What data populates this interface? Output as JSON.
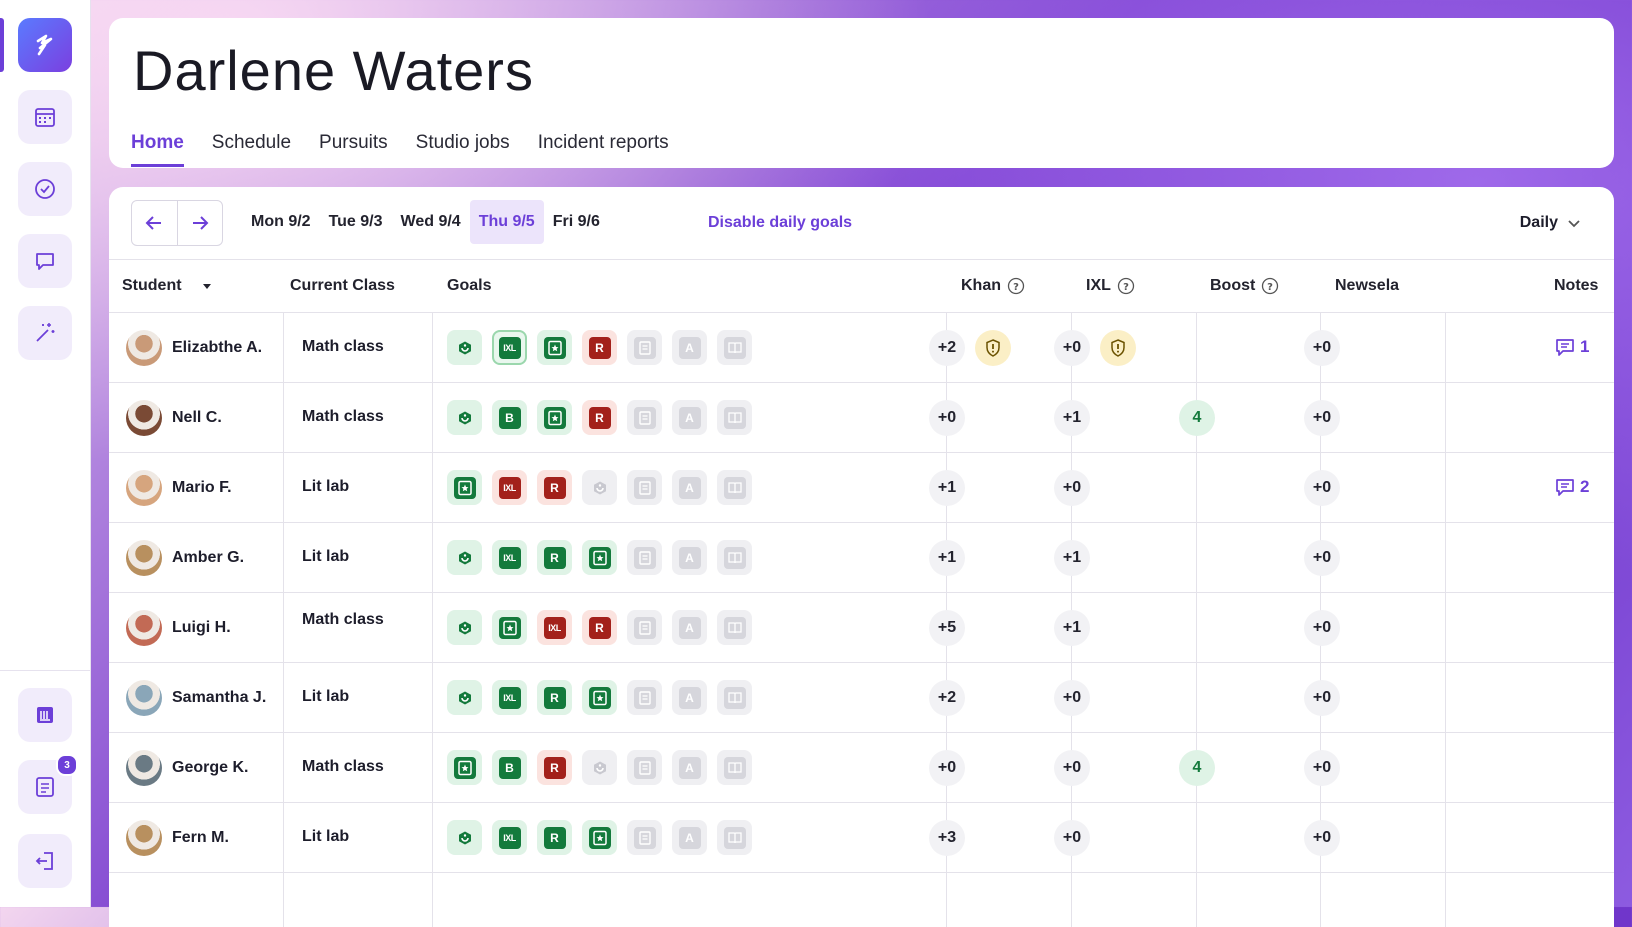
{
  "sidebar": {
    "items": [
      "logo-icon",
      "calendar-icon",
      "check-circle-icon",
      "chat-icon",
      "magic-wand-icon"
    ],
    "bottom_items": [
      "library-icon",
      "report-icon",
      "logout-icon"
    ],
    "report_badge": "3"
  },
  "header": {
    "title": "Darlene Waters",
    "tabs": [
      "Home",
      "Schedule",
      "Pursuits",
      "Studio jobs",
      "Incident reports"
    ],
    "active_tab": "Home"
  },
  "toolbar": {
    "days": [
      "Mon 9/2",
      "Tue 9/3",
      "Wed 9/4",
      "Thu 9/5",
      "Fri 9/6"
    ],
    "active_day": "Thu 9/5",
    "disable_goals_label": "Disable daily goals",
    "view_label": "Daily"
  },
  "table": {
    "headers": {
      "student": "Student",
      "current_class": "Current Class",
      "goals": "Goals",
      "khan": "Khan",
      "ixl": "IXL",
      "boost": "Boost",
      "newsela": "Newsela",
      "notes": "Notes"
    },
    "rows": [
      {
        "name": "Elizabthe A.",
        "class": "Math class",
        "khan": "+2",
        "khan_warn": true,
        "ixl": "+0",
        "ixl_warn": true,
        "boost": "",
        "newsela": "+0",
        "notes": "1",
        "avatar_color": "#c99a78",
        "goals": [
          [
            "green",
            "khan"
          ],
          [
            "green-outlined",
            "ixl"
          ],
          [
            "green",
            "star"
          ],
          [
            "red",
            "R"
          ],
          [
            "grey",
            "doc"
          ],
          [
            "grey",
            "A"
          ],
          [
            "grey",
            "book"
          ]
        ]
      },
      {
        "name": "Nell C.",
        "class": "Math class",
        "khan": "+0",
        "ixl": "+1",
        "boost": "4",
        "newsela": "+0",
        "notes": "",
        "avatar_color": "#7a4a35",
        "goals": [
          [
            "green",
            "khan"
          ],
          [
            "green",
            "B"
          ],
          [
            "green",
            "star"
          ],
          [
            "red",
            "R"
          ],
          [
            "grey",
            "doc"
          ],
          [
            "grey",
            "A"
          ],
          [
            "grey",
            "book"
          ]
        ]
      },
      {
        "name": "Mario F.",
        "class": "Lit lab",
        "khan": "+1",
        "ixl": "+0",
        "boost": "",
        "newsela": "+0",
        "notes": "2",
        "avatar_color": "#d6a57e",
        "goals": [
          [
            "green",
            "star"
          ],
          [
            "red",
            "ixl"
          ],
          [
            "red",
            "R"
          ],
          [
            "grey",
            "khan"
          ],
          [
            "grey",
            "doc"
          ],
          [
            "grey",
            "A"
          ],
          [
            "grey",
            "book"
          ]
        ]
      },
      {
        "name": "Amber G.",
        "class": "Lit lab",
        "khan": "+1",
        "ixl": "+1",
        "boost": "",
        "newsela": "+0",
        "notes": "",
        "avatar_color": "#b8905f",
        "goals": [
          [
            "green",
            "khan"
          ],
          [
            "green",
            "ixl"
          ],
          [
            "green",
            "R"
          ],
          [
            "green",
            "star"
          ],
          [
            "grey",
            "doc"
          ],
          [
            "grey",
            "A"
          ],
          [
            "grey",
            "book"
          ]
        ]
      },
      {
        "name": "Luigi H.",
        "class": "Math class",
        "khan": "+5",
        "ixl": "+1",
        "boost": "",
        "newsela": "+0",
        "notes": "",
        "avatar_color": "#c26a55",
        "goals": [
          [
            "green",
            "khan"
          ],
          [
            "green",
            "star"
          ],
          [
            "red",
            "ixl"
          ],
          [
            "red",
            "R"
          ],
          [
            "grey",
            "doc"
          ],
          [
            "grey",
            "A"
          ],
          [
            "grey",
            "book"
          ]
        ]
      },
      {
        "name": "Samantha J.",
        "class": "Lit lab",
        "khan": "+2",
        "ixl": "+0",
        "boost": "",
        "newsela": "+0",
        "notes": "",
        "avatar_color": "#8aa6b8",
        "goals": [
          [
            "green",
            "khan"
          ],
          [
            "green",
            "ixl"
          ],
          [
            "green",
            "R"
          ],
          [
            "green",
            "star"
          ],
          [
            "grey",
            "doc"
          ],
          [
            "grey",
            "A"
          ],
          [
            "grey",
            "book"
          ]
        ]
      },
      {
        "name": "George K.",
        "class": "Math class",
        "khan": "+0",
        "ixl": "+0",
        "boost": "4",
        "newsela": "+0",
        "notes": "",
        "avatar_color": "#6a7a84",
        "goals": [
          [
            "green",
            "star"
          ],
          [
            "green",
            "B"
          ],
          [
            "red",
            "R"
          ],
          [
            "grey",
            "khan"
          ],
          [
            "grey",
            "doc"
          ],
          [
            "grey",
            "A"
          ],
          [
            "grey",
            "book"
          ]
        ]
      },
      {
        "name": "Fern M.",
        "class": "Lit lab",
        "khan": "+3",
        "ixl": "+0",
        "boost": "",
        "newsela": "+0",
        "notes": "",
        "avatar_color": "#b8905f",
        "goals": [
          [
            "green",
            "khan"
          ],
          [
            "green",
            "ixl"
          ],
          [
            "green",
            "R"
          ],
          [
            "green",
            "star"
          ],
          [
            "grey",
            "doc"
          ],
          [
            "grey",
            "A"
          ],
          [
            "grey",
            "book"
          ]
        ]
      }
    ]
  },
  "colors": {
    "accent": "#6c3fd8",
    "goal_green": "#137a3c",
    "goal_red": "#a3211b",
    "warn_bg": "#fbefc6"
  }
}
